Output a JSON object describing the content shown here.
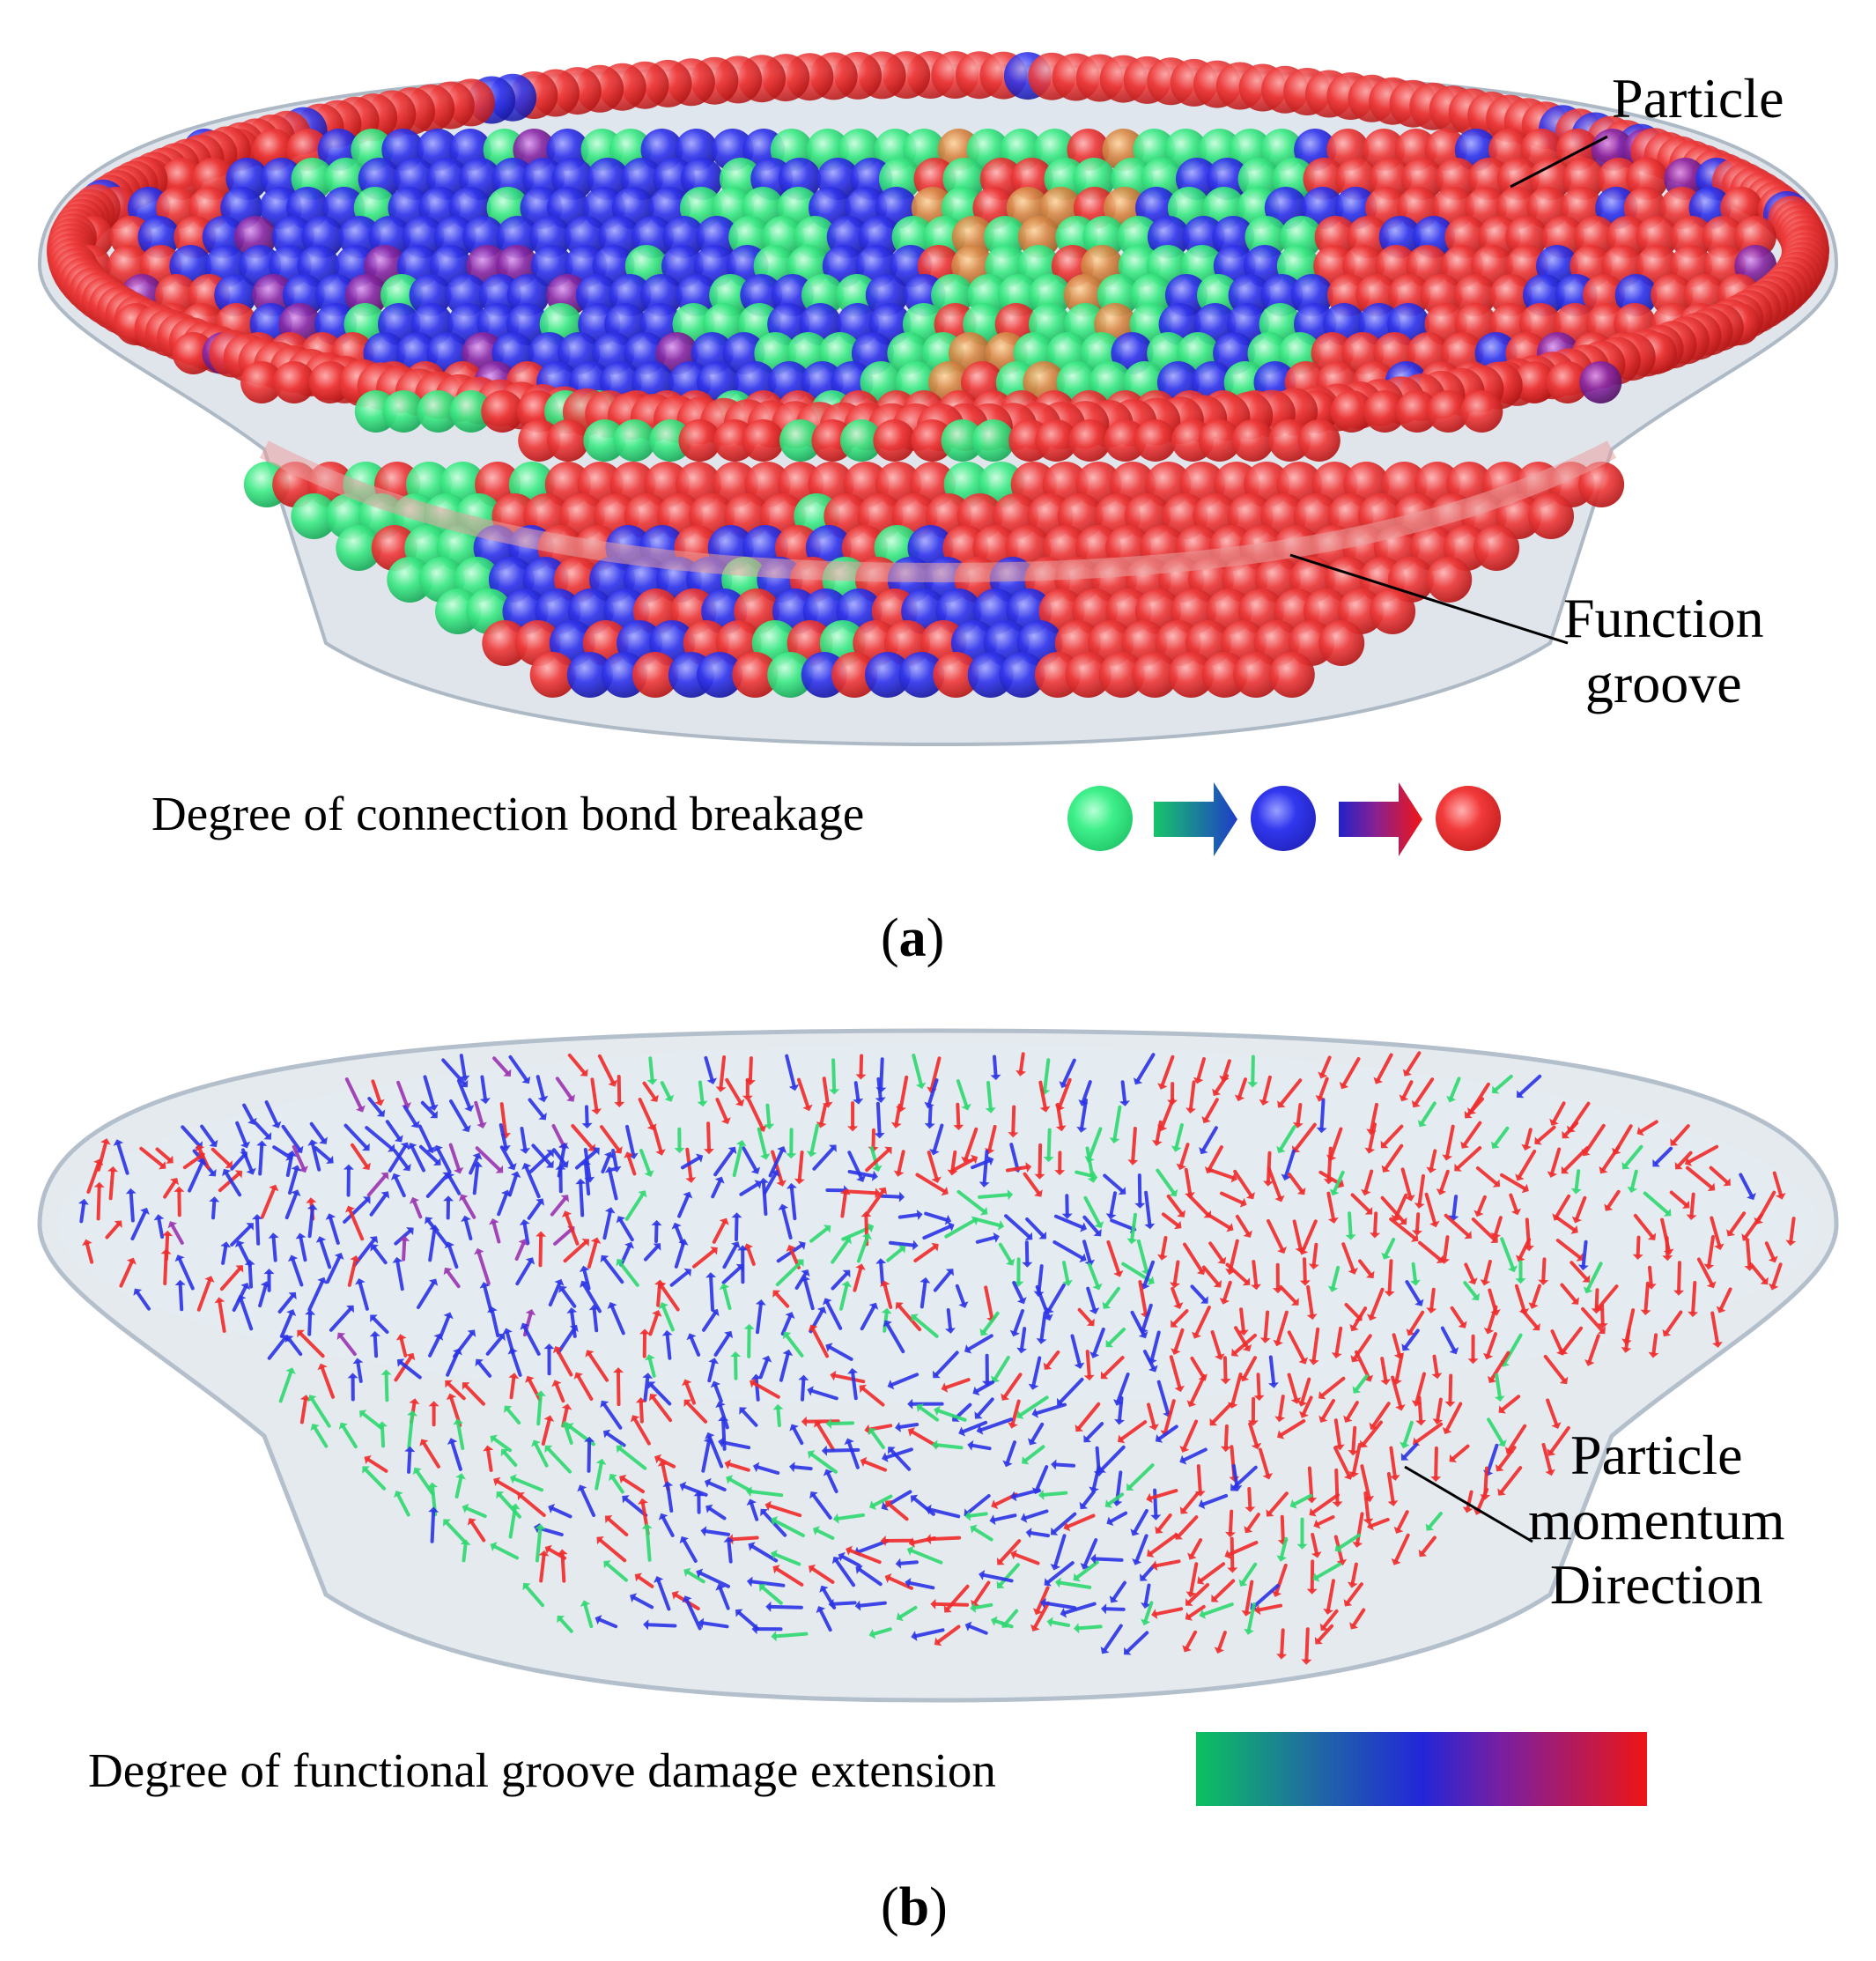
{
  "panel_a": {
    "callout_particle": "Particle",
    "callout_groove": "Function groove",
    "callout_groove_line1": "Function",
    "callout_groove_line2": "groove",
    "legend_label": "Degree of connection bond breakage",
    "legend_states": [
      {
        "color": "#22e070",
        "icon": "green-sphere-icon"
      },
      {
        "color": "#2a2ee0",
        "icon": "blue-sphere-icon"
      },
      {
        "color": "#f01818",
        "icon": "red-sphere-icon"
      }
    ],
    "panel_label_open": "(",
    "panel_label_letter": "a",
    "panel_label_close": ")"
  },
  "panel_b": {
    "callout_line1": "Particle",
    "callout_line2": "momentum",
    "callout_line3": "Direction",
    "legend_label": "Degree of functional groove damage extension",
    "gradient_stops": [
      "#0cc160",
      "#2227d8",
      "#ee1515"
    ],
    "panel_label_open": "(",
    "panel_label_letter": "b",
    "panel_label_close": ")"
  },
  "colors": {
    "green": "#2ee57a",
    "blue": "#2a2ee0",
    "red": "#ef3a3a",
    "purple": "#8a2aa0",
    "shell": "#c6d0dc"
  }
}
